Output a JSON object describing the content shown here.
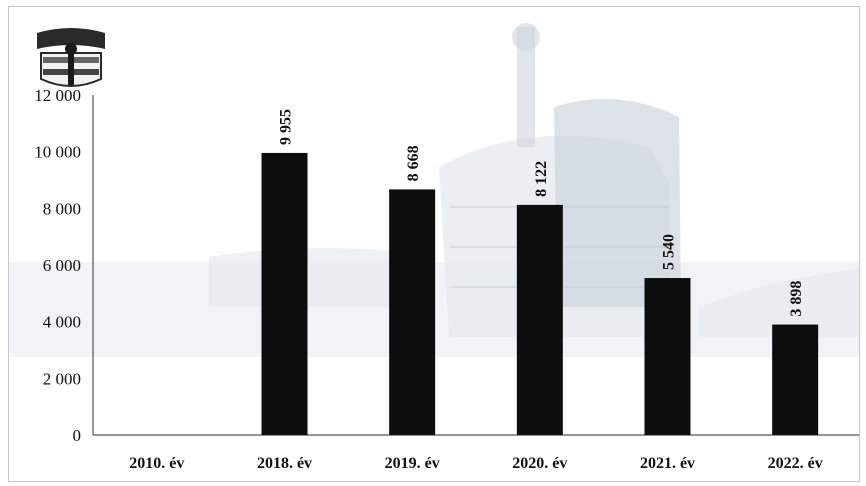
{
  "chart_data": {
    "type": "bar",
    "categories": [
      "2010. év",
      "2018. év",
      "2019. év",
      "2020. év",
      "2021. év",
      "2022. év"
    ],
    "values": [
      null,
      9955,
      8668,
      8122,
      5540,
      3898
    ],
    "data_labels": [
      "",
      "9 955",
      "8 668",
      "8 122",
      "5 540",
      "3 898"
    ],
    "yticks": [
      "0",
      "2 000",
      "4 000",
      "6 000",
      "8 000",
      "10 000",
      "12 000"
    ],
    "ylim": [
      0,
      12000
    ],
    "bar_color": "#0d0d0d",
    "grid": false,
    "legend": "none"
  },
  "decor": {
    "emblem": "police-badge-emblem",
    "background": "headquarters-building-photo"
  }
}
